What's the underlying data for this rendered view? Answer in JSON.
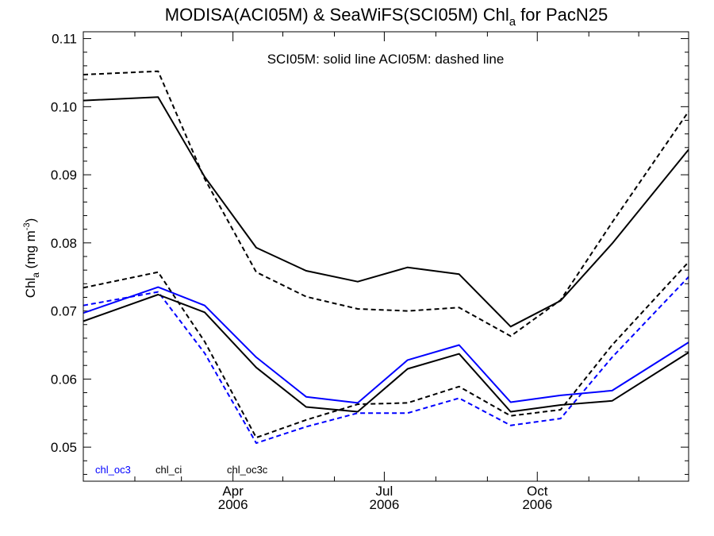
{
  "chart_data": {
    "type": "line",
    "title": {
      "main": "MODISA(ACI05M) & SeaWiFS(SCI05M)  Chl",
      "sub": "a",
      "rest": " for PacN25"
    },
    "ylabel": {
      "main": "Chl",
      "sub": "a",
      "units": " (mg m",
      "sup": "-3",
      "close": ")"
    },
    "annotation": "SCI05M: solid line   ACI05M: dashed line",
    "ylim": [
      0.045,
      0.111
    ],
    "yticks": [
      0.05,
      0.06,
      0.07,
      0.08,
      0.09,
      0.1,
      0.11
    ],
    "ytick_labels": [
      "0.05",
      "0.06",
      "0.07",
      "0.08",
      "0.09",
      "0.10",
      "0.11"
    ],
    "xlim": [
      "2006-01-01",
      "2006-12-31"
    ],
    "x": [
      "2006-01-01",
      "2006-02-15",
      "2006-03-15",
      "2006-04-15",
      "2006-05-15",
      "2006-06-15",
      "2006-07-15",
      "2006-08-15",
      "2006-09-15",
      "2006-10-15",
      "2006-11-15",
      "2006-12-31"
    ],
    "major_ticks": [
      {
        "date": "2006-04-01",
        "month": "Apr",
        "year": "2006"
      },
      {
        "date": "2006-07-01",
        "month": "Jul",
        "year": "2006"
      },
      {
        "date": "2006-10-01",
        "month": "Oct",
        "year": "2006"
      }
    ],
    "minor_ticks": [
      "2006-02-01",
      "2006-03-01",
      "2006-05-01",
      "2006-06-01",
      "2006-08-01",
      "2006-09-01",
      "2006-11-01",
      "2006-12-01"
    ],
    "legend": [
      {
        "label": "chl_oc3",
        "color": "#0000ff"
      },
      {
        "label": "chl_ci",
        "color": "#000000"
      },
      {
        "label": "chl_oc3c",
        "color": "#000000"
      }
    ],
    "series": [
      {
        "name": "SCI05M chl_ci",
        "color": "#000000",
        "dashed": false,
        "values": [
          0.1009,
          0.1014,
          0.0897,
          0.0793,
          0.0759,
          0.0743,
          0.0764,
          0.0754,
          0.0677,
          0.0715,
          0.0799,
          0.0937
        ]
      },
      {
        "name": "ACI05M chl_ci",
        "color": "#000000",
        "dashed": true,
        "values": [
          0.1047,
          0.1052,
          0.0894,
          0.0757,
          0.0721,
          0.0703,
          0.07,
          0.0705,
          0.0663,
          0.0716,
          0.083,
          0.0993
        ]
      },
      {
        "name": "SCI05M chl_oc3",
        "color": "#0000ff",
        "dashed": false,
        "values": [
          0.0697,
          0.0735,
          0.0708,
          0.0632,
          0.0574,
          0.0565,
          0.0628,
          0.065,
          0.0566,
          0.0576,
          0.0583,
          0.0654
        ]
      },
      {
        "name": "ACI05M chl_oc3",
        "color": "#0000ff",
        "dashed": true,
        "values": [
          0.0708,
          0.0728,
          0.0638,
          0.0506,
          0.053,
          0.055,
          0.055,
          0.0572,
          0.0532,
          0.0542,
          0.0632,
          0.075
        ]
      },
      {
        "name": "SCI05M chl_oc3c",
        "color": "#000000",
        "dashed": false,
        "values": [
          0.0685,
          0.0724,
          0.0698,
          0.0617,
          0.0559,
          0.0552,
          0.0615,
          0.0637,
          0.0552,
          0.0562,
          0.0568,
          0.0639
        ]
      },
      {
        "name": "ACI05M chl_oc3c",
        "color": "#000000",
        "dashed": true,
        "values": [
          0.0734,
          0.0757,
          0.0655,
          0.0514,
          0.054,
          0.0563,
          0.0565,
          0.0589,
          0.0546,
          0.0555,
          0.065,
          0.0772
        ]
      }
    ]
  }
}
